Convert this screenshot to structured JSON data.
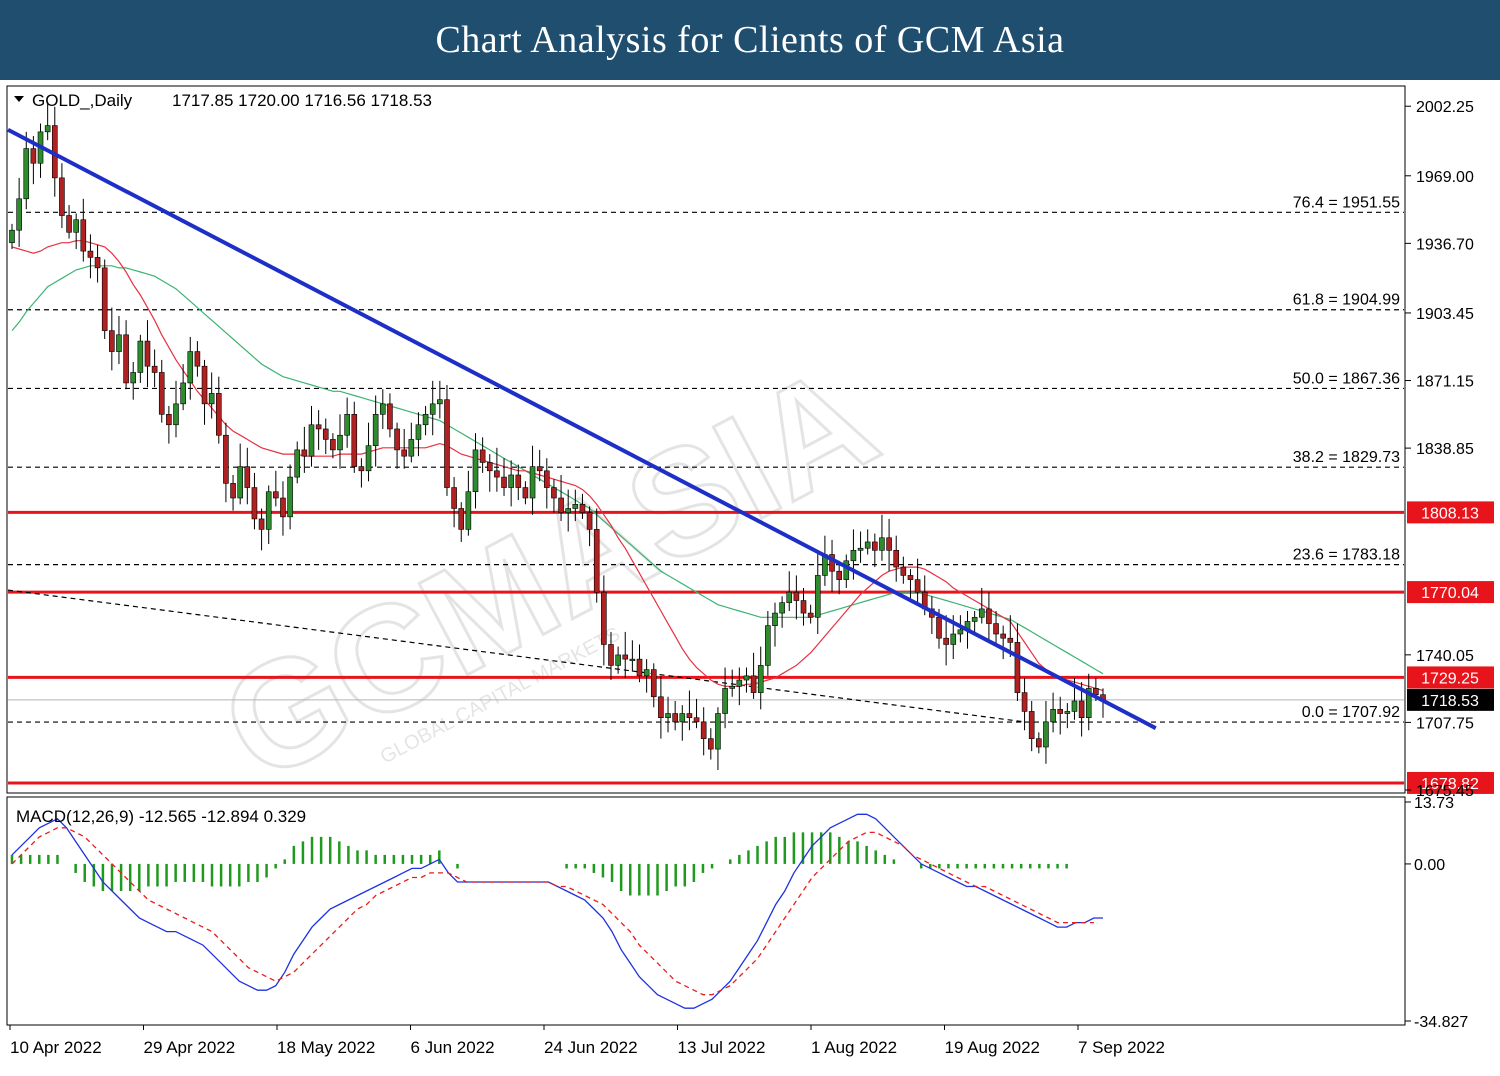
{
  "header": {
    "title": "Chart Analysis for Clients of GCM Asia"
  },
  "watermark": {
    "brand": "GCMASIA",
    "sub": "GLOBAL CAPITAL MARKETS"
  },
  "chart_data": {
    "type": "candlestick",
    "symbol_label": "GOLD_,Daily",
    "ohlc_label": "1717.85 1720.00 1716.56 1718.53",
    "ylim": [
      1675.45,
      2010
    ],
    "price_ticks": [
      "2002.25",
      "1969.00",
      "1936.70",
      "1903.45",
      "1871.15",
      "1838.85",
      "1740.05",
      "1707.75",
      "1675.45"
    ],
    "date_ticks": [
      "10 Apr 2022",
      "29 Apr 2022",
      "18 May 2022",
      "6 Jun 2022",
      "24 Jun 2022",
      "13 Jul 2022",
      "1 Aug 2022",
      "19 Aug 2022",
      "7 Sep 2022"
    ],
    "fibonacci_levels": [
      {
        "label": "76.4 = 1951.55",
        "value": 1951.55
      },
      {
        "label": "61.8 = 1904.99",
        "value": 1904.99
      },
      {
        "label": "50.0 = 1867.36",
        "value": 1867.36
      },
      {
        "label": "38.2 = 1829.73",
        "value": 1829.73
      },
      {
        "label": "23.6 = 1783.18",
        "value": 1783.18
      },
      {
        "label": "0.0 = 1707.92",
        "value": 1707.92
      }
    ],
    "support_resistance": [
      {
        "label": "1808.13",
        "value": 1808.13
      },
      {
        "label": "1770.04",
        "value": 1770.04
      },
      {
        "label": "1729.25",
        "value": 1729.25
      },
      {
        "label": "1678.82",
        "value": 1678.82
      }
    ],
    "current_price": {
      "label": "1718.53",
      "value": 1718.53
    },
    "trendline": {
      "start": [
        0,
        1991
      ],
      "end": [
        159,
        1705
      ]
    },
    "support_trendline": {
      "start": [
        0,
        1771
      ],
      "end": [
        142,
        1708
      ]
    },
    "closes": [
      1943,
      1958,
      1982,
      1975,
      1990,
      1993,
      1968,
      1950,
      1942,
      1948,
      1933,
      1930,
      1925,
      1895,
      1885,
      1893,
      1870,
      1875,
      1890,
      1878,
      1875,
      1855,
      1850,
      1860,
      1870,
      1885,
      1878,
      1860,
      1865,
      1845,
      1822,
      1815,
      1830,
      1820,
      1805,
      1800,
      1818,
      1815,
      1806,
      1825,
      1838,
      1835,
      1850,
      1848,
      1843,
      1838,
      1845,
      1855,
      1830,
      1828,
      1840,
      1855,
      1860,
      1848,
      1838,
      1835,
      1843,
      1850,
      1855,
      1860,
      1862,
      1820,
      1810,
      1800,
      1818,
      1838,
      1832,
      1828,
      1825,
      1820,
      1826,
      1820,
      1815,
      1830,
      1828,
      1820,
      1815,
      1808,
      1810,
      1812,
      1808,
      1800,
      1770,
      1745,
      1735,
      1740,
      1738,
      1738,
      1730,
      1733,
      1720,
      1710,
      1712,
      1708,
      1712,
      1710,
      1708,
      1700,
      1695,
      1712,
      1724,
      1725,
      1728,
      1730,
      1722,
      1735,
      1754,
      1760,
      1765,
      1770,
      1766,
      1760,
      1758,
      1778,
      1788,
      1780,
      1776,
      1785,
      1790,
      1791,
      1794,
      1790,
      1796,
      1790,
      1782,
      1778,
      1776,
      1770,
      1762,
      1758,
      1748,
      1745,
      1750,
      1752,
      1756,
      1758,
      1762,
      1755,
      1750,
      1748,
      1746,
      1722,
      1713,
      1700,
      1696,
      1708,
      1714,
      1712,
      1713,
      1718,
      1710,
      1724,
      1721,
      1718
    ],
    "ma_red": [
      1935,
      1934,
      1933,
      1932,
      1933,
      1935,
      1936,
      1937,
      1937,
      1938,
      1938,
      1937,
      1936,
      1935,
      1932,
      1928,
      1923,
      1917,
      1912,
      1906,
      1900,
      1893,
      1887,
      1881,
      1876,
      1871,
      1866,
      1862,
      1858,
      1854,
      1850,
      1847,
      1845,
      1843,
      1841,
      1839,
      1838,
      1837,
      1836,
      1836,
      1836,
      1835,
      1835,
      1835,
      1835,
      1835,
      1836,
      1836,
      1836,
      1836,
      1837,
      1838,
      1839,
      1839,
      1839,
      1839,
      1839,
      1839,
      1839,
      1840,
      1841,
      1840,
      1838,
      1836,
      1835,
      1834,
      1833,
      1832,
      1831,
      1830,
      1829,
      1828,
      1828,
      1827,
      1826,
      1825,
      1824,
      1823,
      1822,
      1821,
      1819,
      1816,
      1812,
      1807,
      1802,
      1796,
      1791,
      1785,
      1779,
      1773,
      1767,
      1761,
      1755,
      1749,
      1743,
      1738,
      1734,
      1731,
      1728,
      1726,
      1725,
      1725,
      1725,
      1726,
      1726,
      1727,
      1728,
      1729,
      1731,
      1733,
      1735,
      1738,
      1741,
      1745,
      1749,
      1753,
      1757,
      1761,
      1765,
      1769,
      1772,
      1775,
      1778,
      1780,
      1781,
      1782,
      1782,
      1782,
      1781,
      1779,
      1777,
      1775,
      1772,
      1770,
      1768,
      1766,
      1764,
      1762,
      1760,
      1758,
      1756,
      1751,
      1746,
      1741,
      1736,
      1733,
      1731,
      1729,
      1728,
      1727,
      1726,
      1725,
      1724,
      1723
    ],
    "ma_green": [
      1895,
      1899,
      1904,
      1908,
      1912,
      1916,
      1918,
      1920,
      1922,
      1924,
      1925,
      1926,
      1926,
      1926,
      1926,
      1925,
      1925,
      1924,
      1923,
      1922,
      1921,
      1919,
      1917,
      1915,
      1912,
      1909,
      1906,
      1903,
      1900,
      1897,
      1894,
      1891,
      1888,
      1885,
      1882,
      1879,
      1877,
      1875,
      1873,
      1872,
      1871,
      1870,
      1869,
      1868,
      1867,
      1866,
      1866,
      1865,
      1864,
      1863,
      1862,
      1861,
      1860,
      1859,
      1858,
      1857,
      1856,
      1855,
      1854,
      1853,
      1852,
      1850,
      1848,
      1846,
      1844,
      1842,
      1840,
      1838,
      1836,
      1834,
      1832,
      1830,
      1828,
      1826,
      1824,
      1822,
      1820,
      1818,
      1816,
      1814,
      1812,
      1810,
      1807,
      1804,
      1801,
      1798,
      1795,
      1792,
      1789,
      1786,
      1783,
      1780,
      1778,
      1776,
      1774,
      1772,
      1770,
      1768,
      1766,
      1764,
      1763,
      1762,
      1761,
      1760,
      1759,
      1758,
      1758,
      1758,
      1758,
      1758,
      1758,
      1758,
      1758,
      1759,
      1760,
      1761,
      1762,
      1763,
      1764,
      1765,
      1766,
      1767,
      1768,
      1769,
      1770,
      1770,
      1770,
      1770,
      1769,
      1768,
      1767,
      1766,
      1765,
      1764,
      1763,
      1762,
      1761,
      1760,
      1759,
      1758,
      1757,
      1755,
      1753,
      1751,
      1749,
      1747,
      1745,
      1743,
      1741,
      1739,
      1737,
      1735,
      1733,
      1731
    ],
    "macd": {
      "label": "MACD(12,26,9) -12.565 -12.894 0.329",
      "ylim": [
        -34.827,
        13.73
      ],
      "ticks": [
        "13.73",
        "0.00",
        "-34.827"
      ],
      "main": [
        2,
        4,
        6,
        8,
        9,
        10,
        8,
        5,
        2,
        -1,
        -4,
        -6,
        -8,
        -10,
        -12,
        -13,
        -14,
        -15,
        -15,
        -16,
        -17,
        -18,
        -20,
        -22,
        -24,
        -26,
        -27,
        -28,
        -28,
        -27,
        -24,
        -20,
        -17,
        -14,
        -12,
        -10,
        -9,
        -8,
        -7,
        -6,
        -5,
        -4,
        -3,
        -2,
        -1,
        -1,
        0,
        1,
        -2,
        -4,
        -4,
        -4,
        -4,
        -4,
        -4,
        -4,
        -4,
        -4,
        -4,
        -4,
        -5,
        -6,
        -7,
        -8,
        -10,
        -12,
        -15,
        -19,
        -22,
        -25,
        -27,
        -29,
        -30,
        -31,
        -32,
        -32,
        -31,
        -30,
        -28,
        -26,
        -23,
        -20,
        -17,
        -13,
        -9,
        -6,
        -2,
        1,
        4,
        6,
        8,
        9,
        10,
        11,
        11,
        10,
        8,
        6,
        4,
        2,
        0,
        -1,
        -2,
        -3,
        -4,
        -5,
        -5,
        -6,
        -7,
        -8,
        -9,
        -10,
        -11,
        -12,
        -13,
        -14,
        -14,
        -13,
        -13,
        -12,
        -12
      ],
      "signal": [
        0,
        2,
        4,
        6,
        7,
        8,
        8,
        7,
        6,
        4,
        2,
        0,
        -2,
        -4,
        -6,
        -8,
        -9,
        -10,
        -11,
        -12,
        -13,
        -14,
        -15,
        -17,
        -19,
        -21,
        -23,
        -24,
        -25,
        -26,
        -25,
        -24,
        -22,
        -20,
        -18,
        -16,
        -14,
        -12,
        -10,
        -9,
        -7,
        -6,
        -5,
        -4,
        -3,
        -3,
        -2,
        -2,
        -2,
        -3,
        -4,
        -4,
        -4,
        -4,
        -4,
        -4,
        -4,
        -4,
        -4,
        -4,
        -5,
        -5,
        -6,
        -7,
        -8,
        -9,
        -11,
        -13,
        -15,
        -18,
        -20,
        -22,
        -24,
        -26,
        -27,
        -28,
        -29,
        -29,
        -28,
        -27,
        -25,
        -23,
        -21,
        -18,
        -15,
        -12,
        -9,
        -6,
        -3,
        -1,
        1,
        3,
        5,
        6,
        7,
        7,
        6,
        5,
        4,
        2,
        1,
        0,
        -1,
        -2,
        -3,
        -4,
        -5,
        -5,
        -6,
        -7,
        -8,
        -9,
        -10,
        -11,
        -12,
        -13,
        -13,
        -13,
        -13,
        -13
      ],
      "hist": [
        2,
        2,
        2,
        2,
        2,
        2,
        0,
        -2,
        -4,
        -5,
        -6,
        -6,
        -6,
        -6,
        -6,
        -5,
        -5,
        -5,
        -4,
        -4,
        -4,
        -4,
        -5,
        -5,
        -5,
        -5,
        -4,
        -4,
        -3,
        -1,
        1,
        4,
        5,
        6,
        6,
        6,
        5,
        4,
        3,
        3,
        2,
        2,
        2,
        2,
        2,
        2,
        2,
        3,
        0,
        -1,
        0,
        0,
        0,
        0,
        0,
        0,
        0,
        0,
        0,
        0,
        0,
        -1,
        -1,
        -1,
        -2,
        -3,
        -4,
        -6,
        -7,
        -7,
        -7,
        -7,
        -6,
        -5,
        -5,
        -4,
        -2,
        -1,
        0,
        1,
        2,
        3,
        4,
        5,
        6,
        6,
        7,
        7,
        7,
        7,
        7,
        6,
        5,
        5,
        4,
        3,
        2,
        1,
        0,
        0,
        -1,
        -1,
        -1,
        -1,
        -1,
        -1,
        -1,
        -1,
        -1,
        -1,
        -1,
        -1,
        -1,
        -1,
        -1,
        -1,
        -1,
        0,
        0,
        0,
        0,
        0,
        0
      ]
    }
  },
  "colors": {
    "bull": "#2e8b2e",
    "bear": "#b02222",
    "trendline": "#1e2fc8",
    "level_line": "#e8141c",
    "level_label_bg": "#e8141c",
    "ma_red": "#e83040",
    "ma_green": "#3cb371",
    "macd_main": "#1e32e0",
    "macd_signal": "#e81c1c",
    "macd_hist": "#1f9a1f"
  }
}
